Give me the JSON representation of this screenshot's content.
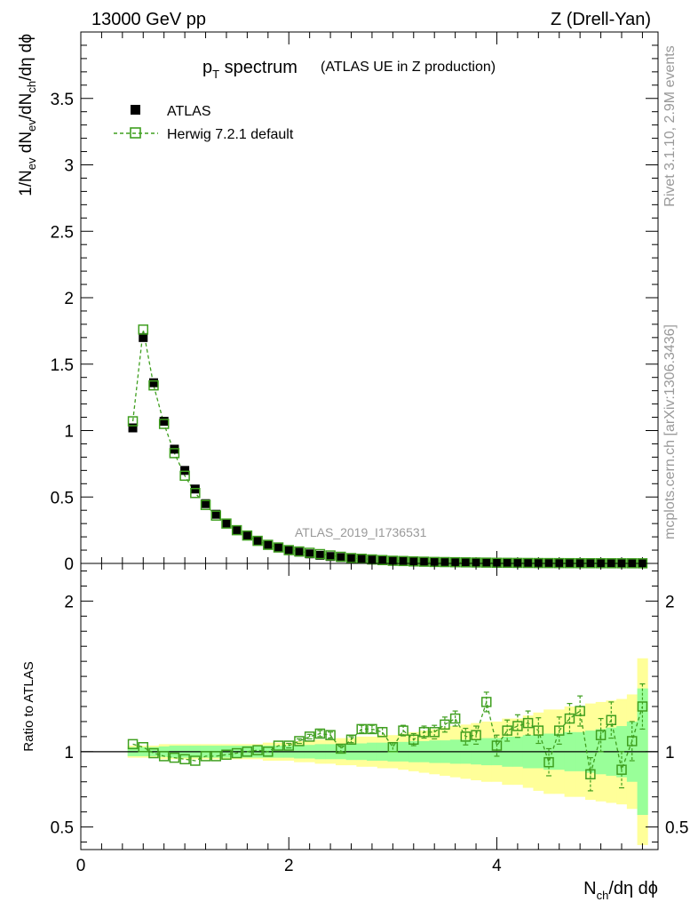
{
  "header": {
    "left": "13000 GeV pp",
    "right": "Z (Drell-Yan)"
  },
  "side_labels": {
    "rivet": "Rivet 3.1.10,  2.9M events",
    "mcplots": "mcplots.cern.ch [arXiv:1306.3436]"
  },
  "chart_data": [
    {
      "panel": "main",
      "type": "scatter",
      "title_main": "p",
      "title_sub": "T",
      "title_main_suffix": " spectrum",
      "title_note": "(ATLAS UE in Z production)",
      "ylabel_parts": [
        "1/N",
        "ev",
        " dN",
        "ev",
        "/dN",
        "ch",
        "/dη dϕ"
      ],
      "watermark": "ATLAS_2019_I1736531",
      "xlim": [
        0,
        5.55
      ],
      "ylim": [
        0,
        4.0
      ],
      "yticks": [
        {
          "v": 0,
          "label": "0"
        },
        {
          "v": 0.5,
          "label": "0.5"
        },
        {
          "v": 1,
          "label": "1"
        },
        {
          "v": 1.5,
          "label": "1.5"
        },
        {
          "v": 2,
          "label": "2"
        },
        {
          "v": 2.5,
          "label": "2.5"
        },
        {
          "v": 3,
          "label": "3"
        },
        {
          "v": 3.5,
          "label": "3.5"
        }
      ],
      "legend": [
        {
          "name": "ATLAS",
          "marker": "square-filled",
          "color": "#000000"
        },
        {
          "name": "Herwig 7.2.1 default",
          "marker": "square-open",
          "color": "#3f9f1f"
        }
      ],
      "x": [
        0.5,
        0.6,
        0.7,
        0.8,
        0.9,
        1.0,
        1.1,
        1.2,
        1.3,
        1.4,
        1.5,
        1.6,
        1.7,
        1.8,
        1.9,
        2.0,
        2.1,
        2.2,
        2.3,
        2.4,
        2.5,
        2.6,
        2.7,
        2.8,
        2.9,
        3.0,
        3.1,
        3.2,
        3.3,
        3.4,
        3.5,
        3.6,
        3.7,
        3.8,
        3.9,
        4.0,
        4.1,
        4.2,
        4.3,
        4.4,
        4.5,
        4.6,
        4.7,
        4.8,
        4.9,
        5.0,
        5.1,
        5.2,
        5.3,
        5.4
      ],
      "series": [
        {
          "name": "ATLAS",
          "color": "#000000",
          "values": [
            1.02,
            1.7,
            1.36,
            1.07,
            0.86,
            0.7,
            0.56,
            0.45,
            0.37,
            0.3,
            0.25,
            0.21,
            0.17,
            0.14,
            0.12,
            0.1,
            0.085,
            0.072,
            0.061,
            0.052,
            0.044,
            0.037,
            0.031,
            0.026,
            0.022,
            0.019,
            0.016,
            0.014,
            0.012,
            0.01,
            0.009,
            0.008,
            0.007,
            0.006,
            0.005,
            0.0045,
            0.004,
            0.0035,
            0.003,
            0.0027,
            0.0024,
            0.0021,
            0.0019,
            0.0017,
            0.0015,
            0.0013,
            0.0012,
            0.0011,
            0.001,
            0.0009
          ]
        },
        {
          "name": "Herwig 7.2.1 default",
          "color": "#3f9f1f",
          "values": [
            1.07,
            1.76,
            1.34,
            1.05,
            0.83,
            0.66,
            0.53,
            0.44,
            0.36,
            0.3,
            0.25,
            0.21,
            0.17,
            0.14,
            0.12,
            0.1,
            0.09,
            0.08,
            0.07,
            0.06,
            0.05,
            0.04,
            0.035,
            0.03,
            0.025,
            0.02,
            0.018,
            0.015,
            0.013,
            0.011,
            0.01,
            0.009,
            0.008,
            0.007,
            0.006,
            0.005,
            0.0045,
            0.004,
            0.0035,
            0.003,
            0.0027,
            0.0024,
            0.0021,
            0.0019,
            0.0017,
            0.0015,
            0.0013,
            0.0012,
            0.0011,
            0.001
          ]
        }
      ]
    },
    {
      "panel": "ratio",
      "type": "scatter",
      "ylabel": "Ratio to ATLAS",
      "xlabel_parts": [
        "N",
        "ch",
        "/dη dϕ"
      ],
      "xlim": [
        0,
        5.55
      ],
      "ylim": [
        0.35,
        2.25
      ],
      "xticks": [
        {
          "v": 0,
          "label": "0"
        },
        {
          "v": 2,
          "label": "2"
        },
        {
          "v": 4,
          "label": "4"
        }
      ],
      "yticks": [
        {
          "v": 0.5,
          "label": "0.5"
        },
        {
          "v": 1,
          "label": "1"
        },
        {
          "v": 2,
          "label": "2"
        }
      ],
      "band_colors": {
        "inner": "#99ff99",
        "outer": "#ffff99"
      },
      "bin_edges": [
        0.45,
        0.55,
        0.65,
        0.75,
        0.85,
        0.95,
        1.05,
        1.15,
        1.25,
        1.35,
        1.45,
        1.55,
        1.65,
        1.75,
        1.85,
        1.95,
        2.05,
        2.15,
        2.25,
        2.35,
        2.45,
        2.55,
        2.65,
        2.75,
        2.85,
        2.95,
        3.05,
        3.15,
        3.25,
        3.35,
        3.45,
        3.55,
        3.65,
        3.75,
        3.85,
        3.95,
        4.05,
        4.15,
        4.25,
        4.35,
        4.45,
        4.55,
        4.65,
        4.75,
        4.85,
        4.95,
        5.05,
        5.15,
        5.25,
        5.35,
        5.45
      ],
      "band_inner": [
        0.03,
        0.03,
        0.03,
        0.035,
        0.04,
        0.04,
        0.04,
        0.04,
        0.04,
        0.04,
        0.04,
        0.04,
        0.04,
        0.04,
        0.04,
        0.04,
        0.045,
        0.045,
        0.05,
        0.05,
        0.05,
        0.055,
        0.055,
        0.06,
        0.06,
        0.065,
        0.065,
        0.07,
        0.07,
        0.075,
        0.075,
        0.08,
        0.08,
        0.085,
        0.09,
        0.09,
        0.1,
        0.1,
        0.11,
        0.11,
        0.12,
        0.12,
        0.13,
        0.13,
        0.14,
        0.15,
        0.16,
        0.17,
        0.2,
        0.42
      ],
      "band_outer": [
        0.04,
        0.04,
        0.04,
        0.05,
        0.05,
        0.05,
        0.05,
        0.05,
        0.05,
        0.05,
        0.05,
        0.05,
        0.05,
        0.06,
        0.06,
        0.06,
        0.07,
        0.07,
        0.08,
        0.08,
        0.09,
        0.09,
        0.1,
        0.1,
        0.11,
        0.11,
        0.12,
        0.13,
        0.14,
        0.15,
        0.16,
        0.17,
        0.18,
        0.19,
        0.2,
        0.2,
        0.22,
        0.22,
        0.24,
        0.26,
        0.28,
        0.28,
        0.3,
        0.3,
        0.32,
        0.33,
        0.34,
        0.35,
        0.38,
        0.62
      ],
      "series": [
        {
          "name": "Herwig 7.2.1 default",
          "color": "#3f9f1f",
          "values": [
            1.05,
            1.03,
            0.99,
            0.97,
            0.96,
            0.95,
            0.94,
            0.97,
            0.97,
            0.98,
            0.99,
            1.0,
            1.01,
            1.0,
            1.04,
            1.04,
            1.07,
            1.1,
            1.12,
            1.11,
            1.02,
            1.08,
            1.15,
            1.15,
            1.13,
            1.03,
            1.14,
            1.08,
            1.13,
            1.13,
            1.18,
            1.22,
            1.1,
            1.11,
            1.33,
            1.04,
            1.14,
            1.17,
            1.19,
            1.14,
            0.93,
            1.14,
            1.22,
            1.27,
            0.85,
            1.11,
            1.21,
            0.88,
            1.07,
            1.3
          ],
          "err": [
            0.01,
            0.01,
            0.01,
            0.01,
            0.01,
            0.01,
            0.01,
            0.01,
            0.01,
            0.01,
            0.01,
            0.01,
            0.01,
            0.01,
            0.01,
            0.015,
            0.015,
            0.015,
            0.02,
            0.02,
            0.02,
            0.02,
            0.025,
            0.025,
            0.03,
            0.03,
            0.035,
            0.04,
            0.04,
            0.045,
            0.05,
            0.05,
            0.055,
            0.06,
            0.065,
            0.07,
            0.07,
            0.075,
            0.08,
            0.085,
            0.09,
            0.09,
            0.1,
            0.1,
            0.11,
            0.11,
            0.12,
            0.12,
            0.13,
            0.15
          ]
        }
      ]
    }
  ]
}
